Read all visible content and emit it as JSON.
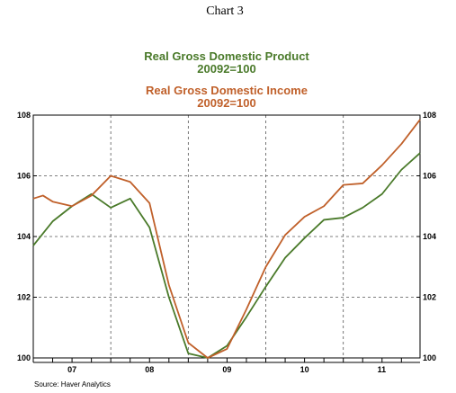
{
  "header": {
    "chart_label": "Chart 3"
  },
  "source": "Source: Haver Analytics",
  "colors": {
    "gdp": "#4a7a2a",
    "gdi": "#c0602a",
    "grid": "#555555",
    "axis": "#000000"
  },
  "chart_data": {
    "type": "line",
    "title_lines": [
      {
        "text": "Real Gross Domestic Product",
        "color": "#4a7a2a"
      },
      {
        "text": "20092=100",
        "color": "#4a7a2a"
      },
      {
        "text": "Real Gross Domestic Income",
        "color": "#c0602a"
      },
      {
        "text": "20092=100",
        "color": "#c0602a"
      }
    ],
    "x_tick_labels": [
      "07",
      "08",
      "09",
      "10",
      "11"
    ],
    "ylim": [
      100,
      108
    ],
    "y_ticks": [
      100,
      102,
      104,
      106,
      108
    ],
    "grid": true,
    "x_range": [
      2007.0,
      2011.99
    ],
    "series": [
      {
        "name": "Real Gross Domestic Product",
        "color": "#4a7a2a",
        "x": [
          2007.0,
          2007.25,
          2007.5,
          2007.75,
          2008.0,
          2008.25,
          2008.5,
          2008.75,
          2009.0,
          2009.25,
          2009.5,
          2009.75,
          2010.0,
          2010.25,
          2010.5,
          2010.75,
          2011.0,
          2011.25,
          2011.5,
          2011.75,
          2011.99
        ],
        "values": [
          103.7,
          104.5,
          105.0,
          105.4,
          104.95,
          105.25,
          104.3,
          102.0,
          100.15,
          100.0,
          100.4,
          101.35,
          102.35,
          103.3,
          103.95,
          104.55,
          104.62,
          104.95,
          105.4,
          106.2,
          106.75
        ]
      },
      {
        "name": "Real Gross Domestic Income",
        "color": "#c0602a",
        "x": [
          2007.0,
          2007.125,
          2007.25,
          2007.5,
          2007.75,
          2008.0,
          2008.25,
          2008.5,
          2008.75,
          2009.0,
          2009.25,
          2009.5,
          2009.75,
          2010.0,
          2010.25,
          2010.5,
          2010.75,
          2011.0,
          2011.25,
          2011.5,
          2011.75,
          2011.99
        ],
        "values": [
          105.25,
          105.35,
          105.15,
          105.0,
          105.35,
          106.0,
          105.8,
          105.1,
          102.4,
          100.5,
          100.0,
          100.3,
          101.6,
          103.0,
          104.05,
          104.65,
          105.0,
          105.7,
          105.75,
          106.35,
          107.05,
          107.85
        ]
      }
    ]
  }
}
